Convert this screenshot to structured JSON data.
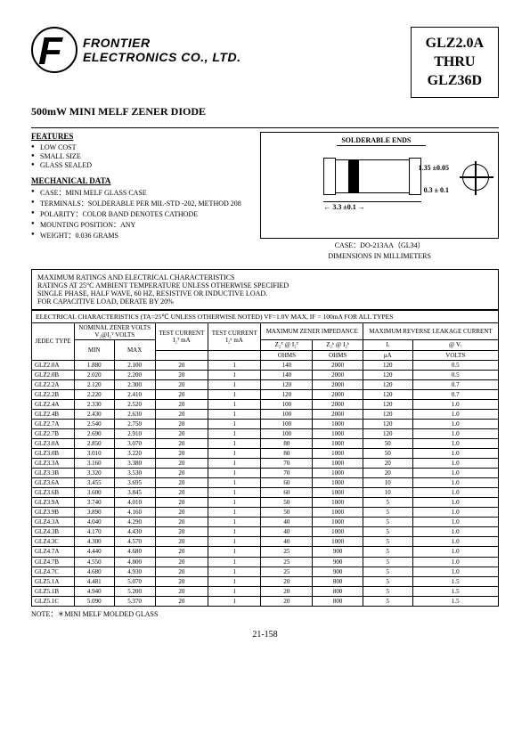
{
  "company": {
    "line1": "FRONTIER",
    "line2": "ELECTRONICS CO., LTD."
  },
  "partbox": {
    "line1": "GLZ2.0A",
    "line2": "THRU",
    "line3": "GLZ36D"
  },
  "subtitle": "500mW MINI MELF ZENER DIODE",
  "features": {
    "heading": "FEATURES",
    "items": [
      "LOW COST",
      "SMALL SIZE",
      "GLASS SEALED"
    ]
  },
  "mechanical": {
    "heading": "MECHANICAL DATA",
    "items": [
      "CASE：MINI MELF GLASS CASE",
      "TERMINALS：SOLDERABLE PER MIL-STD -202, METHOD 208",
      "POLARITY：COLOR BAND DENOTES CATHODE",
      "MOUNTING POSITION：ANY",
      "WEIGHT：0.036 GRAMS"
    ]
  },
  "drawing": {
    "solderable": "SOLDERABLE ENDS",
    "dim_height": "1.35 ±0.05",
    "dim_end": "0.3 ± 0.1",
    "dim_length": "3.3 ±0.1",
    "case_line": "CASE：DO-213AA（GL34）",
    "dim_line": "DIMENSIONS IN MILLIMETERS"
  },
  "ratings": {
    "l1": "MAXIMUM RATINGS AND ELECTRICAL CHARACTERISTICS",
    "l2": "RATINGS AT 25°C AMBIENT TEMPERATURE UNLESS OTHERWISE SPECIFIED",
    "l3": "SINGLE PHASE, HALF WAVE, 60 HZ, RESISTIVE OR INDUCTIVE LOAD.",
    "l4": "FOR CAPACITIVE LOAD, DERATE BY 20%"
  },
  "table_caption": "ELECTRICAL CHARACTERISTICS (TA=25℃ UNLESS OTHERWISE NOTED) VF=1.0V MAX, IF = 100mA FOR ALL TYPES",
  "headers": {
    "jedec": "JEDEC TYPE",
    "nominal": "NOMINAL ZENER VOLTS",
    "nominal_sub": "V₂@I₂ᵀ   VOLTS",
    "min": "MIN",
    "max": "MAX",
    "test_izt": "TEST CURRENT",
    "izt": "I₂ᵀ mA",
    "test_izk": "TEST CURRENT",
    "izk": "I₂ᵏ mA",
    "impedance": "MAXIMUM ZENER IMPEDANCE",
    "zzt": "Z₂ᵀ @ I₂ᵀ",
    "zzk": "Z₂ᵏ @ I₂ᵏ",
    "ohms": "OHMS",
    "reverse": "MAXIMUM REVERSE LEAKAGE CURRENT",
    "ir": "Iᵣ",
    "vr": "@ Vᵣ",
    "ua": "μA",
    "volts": "VOLTS"
  },
  "rows": [
    [
      "GLZ2.0A",
      "1.880",
      "2.100",
      "20",
      "1",
      "140",
      "2000",
      "120",
      "0.5"
    ],
    [
      "GLZ2.0B",
      "2.020",
      "2.200",
      "20",
      "1",
      "140",
      "2000",
      "120",
      "0.5"
    ],
    [
      "GLZ2.2A",
      "2.120",
      "2.300",
      "20",
      "1",
      "120",
      "2000",
      "120",
      "0.7"
    ],
    [
      "GLZ2.2B",
      "2.220",
      "2.410",
      "20",
      "1",
      "120",
      "2000",
      "120",
      "0.7"
    ],
    [
      "GLZ2.4A",
      "2.330",
      "2.520",
      "20",
      "1",
      "100",
      "2000",
      "120",
      "1.0"
    ],
    [
      "GLZ2.4B",
      "2.430",
      "2.630",
      "20",
      "1",
      "100",
      "2000",
      "120",
      "1.0"
    ],
    [
      "GLZ2.7A",
      "2.540",
      "2.750",
      "20",
      "1",
      "100",
      "1000",
      "120",
      "1.0"
    ],
    [
      "GLZ2.7B",
      "2.690",
      "2.910",
      "20",
      "1",
      "100",
      "1000",
      "120",
      "1.0"
    ],
    [
      "GLZ3.0A",
      "2.850",
      "3.070",
      "20",
      "1",
      "80",
      "1000",
      "50",
      "1.0"
    ],
    [
      "GLZ3.0B",
      "3.010",
      "3.220",
      "20",
      "1",
      "80",
      "1000",
      "50",
      "1.0"
    ],
    [
      "GLZ3.3A",
      "3.160",
      "3.380",
      "20",
      "1",
      "70",
      "1000",
      "20",
      "1.0"
    ],
    [
      "GLZ3.3B",
      "3.320",
      "3.530",
      "20",
      "1",
      "70",
      "1000",
      "20",
      "1.0"
    ],
    [
      "GLZ3.6A",
      "3.455",
      "3.695",
      "20",
      "1",
      "60",
      "1000",
      "10",
      "1.0"
    ],
    [
      "GLZ3.6B",
      "3.600",
      "3.845",
      "20",
      "1",
      "60",
      "1000",
      "10",
      "1.0"
    ],
    [
      "GLZ3.9A",
      "3.740",
      "4.010",
      "20",
      "1",
      "50",
      "1000",
      "5",
      "1.0"
    ],
    [
      "GLZ3.9B",
      "3.890",
      "4.160",
      "20",
      "1",
      "50",
      "1000",
      "5",
      "1.0"
    ],
    [
      "GLZ4.3A",
      "4.040",
      "4.290",
      "20",
      "1",
      "40",
      "1000",
      "5",
      "1.0"
    ],
    [
      "GLZ4.3B",
      "4.170",
      "4.430",
      "20",
      "1",
      "40",
      "1000",
      "5",
      "1.0"
    ],
    [
      "GLZ4.3C",
      "4.300",
      "4.570",
      "20",
      "1",
      "40",
      "1000",
      "5",
      "1.0"
    ],
    [
      "GLZ4.7A",
      "4.440",
      "4.680",
      "20",
      "1",
      "25",
      "900",
      "5",
      "1.0"
    ],
    [
      "GLZ4.7B",
      "4.550",
      "4.800",
      "20",
      "1",
      "25",
      "900",
      "5",
      "1.0"
    ],
    [
      "GLZ4.7C",
      "4.680",
      "4.930",
      "20",
      "1",
      "25",
      "900",
      "5",
      "1.0"
    ],
    [
      "GLZ5.1A",
      "4.481",
      "5.070",
      "20",
      "1",
      "20",
      "800",
      "5",
      "1.5"
    ],
    [
      "GLZ5.1B",
      "4.940",
      "5.200",
      "20",
      "1",
      "20",
      "800",
      "5",
      "1.5"
    ],
    [
      "GLZ5.1C",
      "5.090",
      "5.370",
      "20",
      "1",
      "20",
      "800",
      "5",
      "1.5"
    ]
  ],
  "note": "NOTE：＊MINI MELF MOLDED GLASS",
  "page": "21-158"
}
